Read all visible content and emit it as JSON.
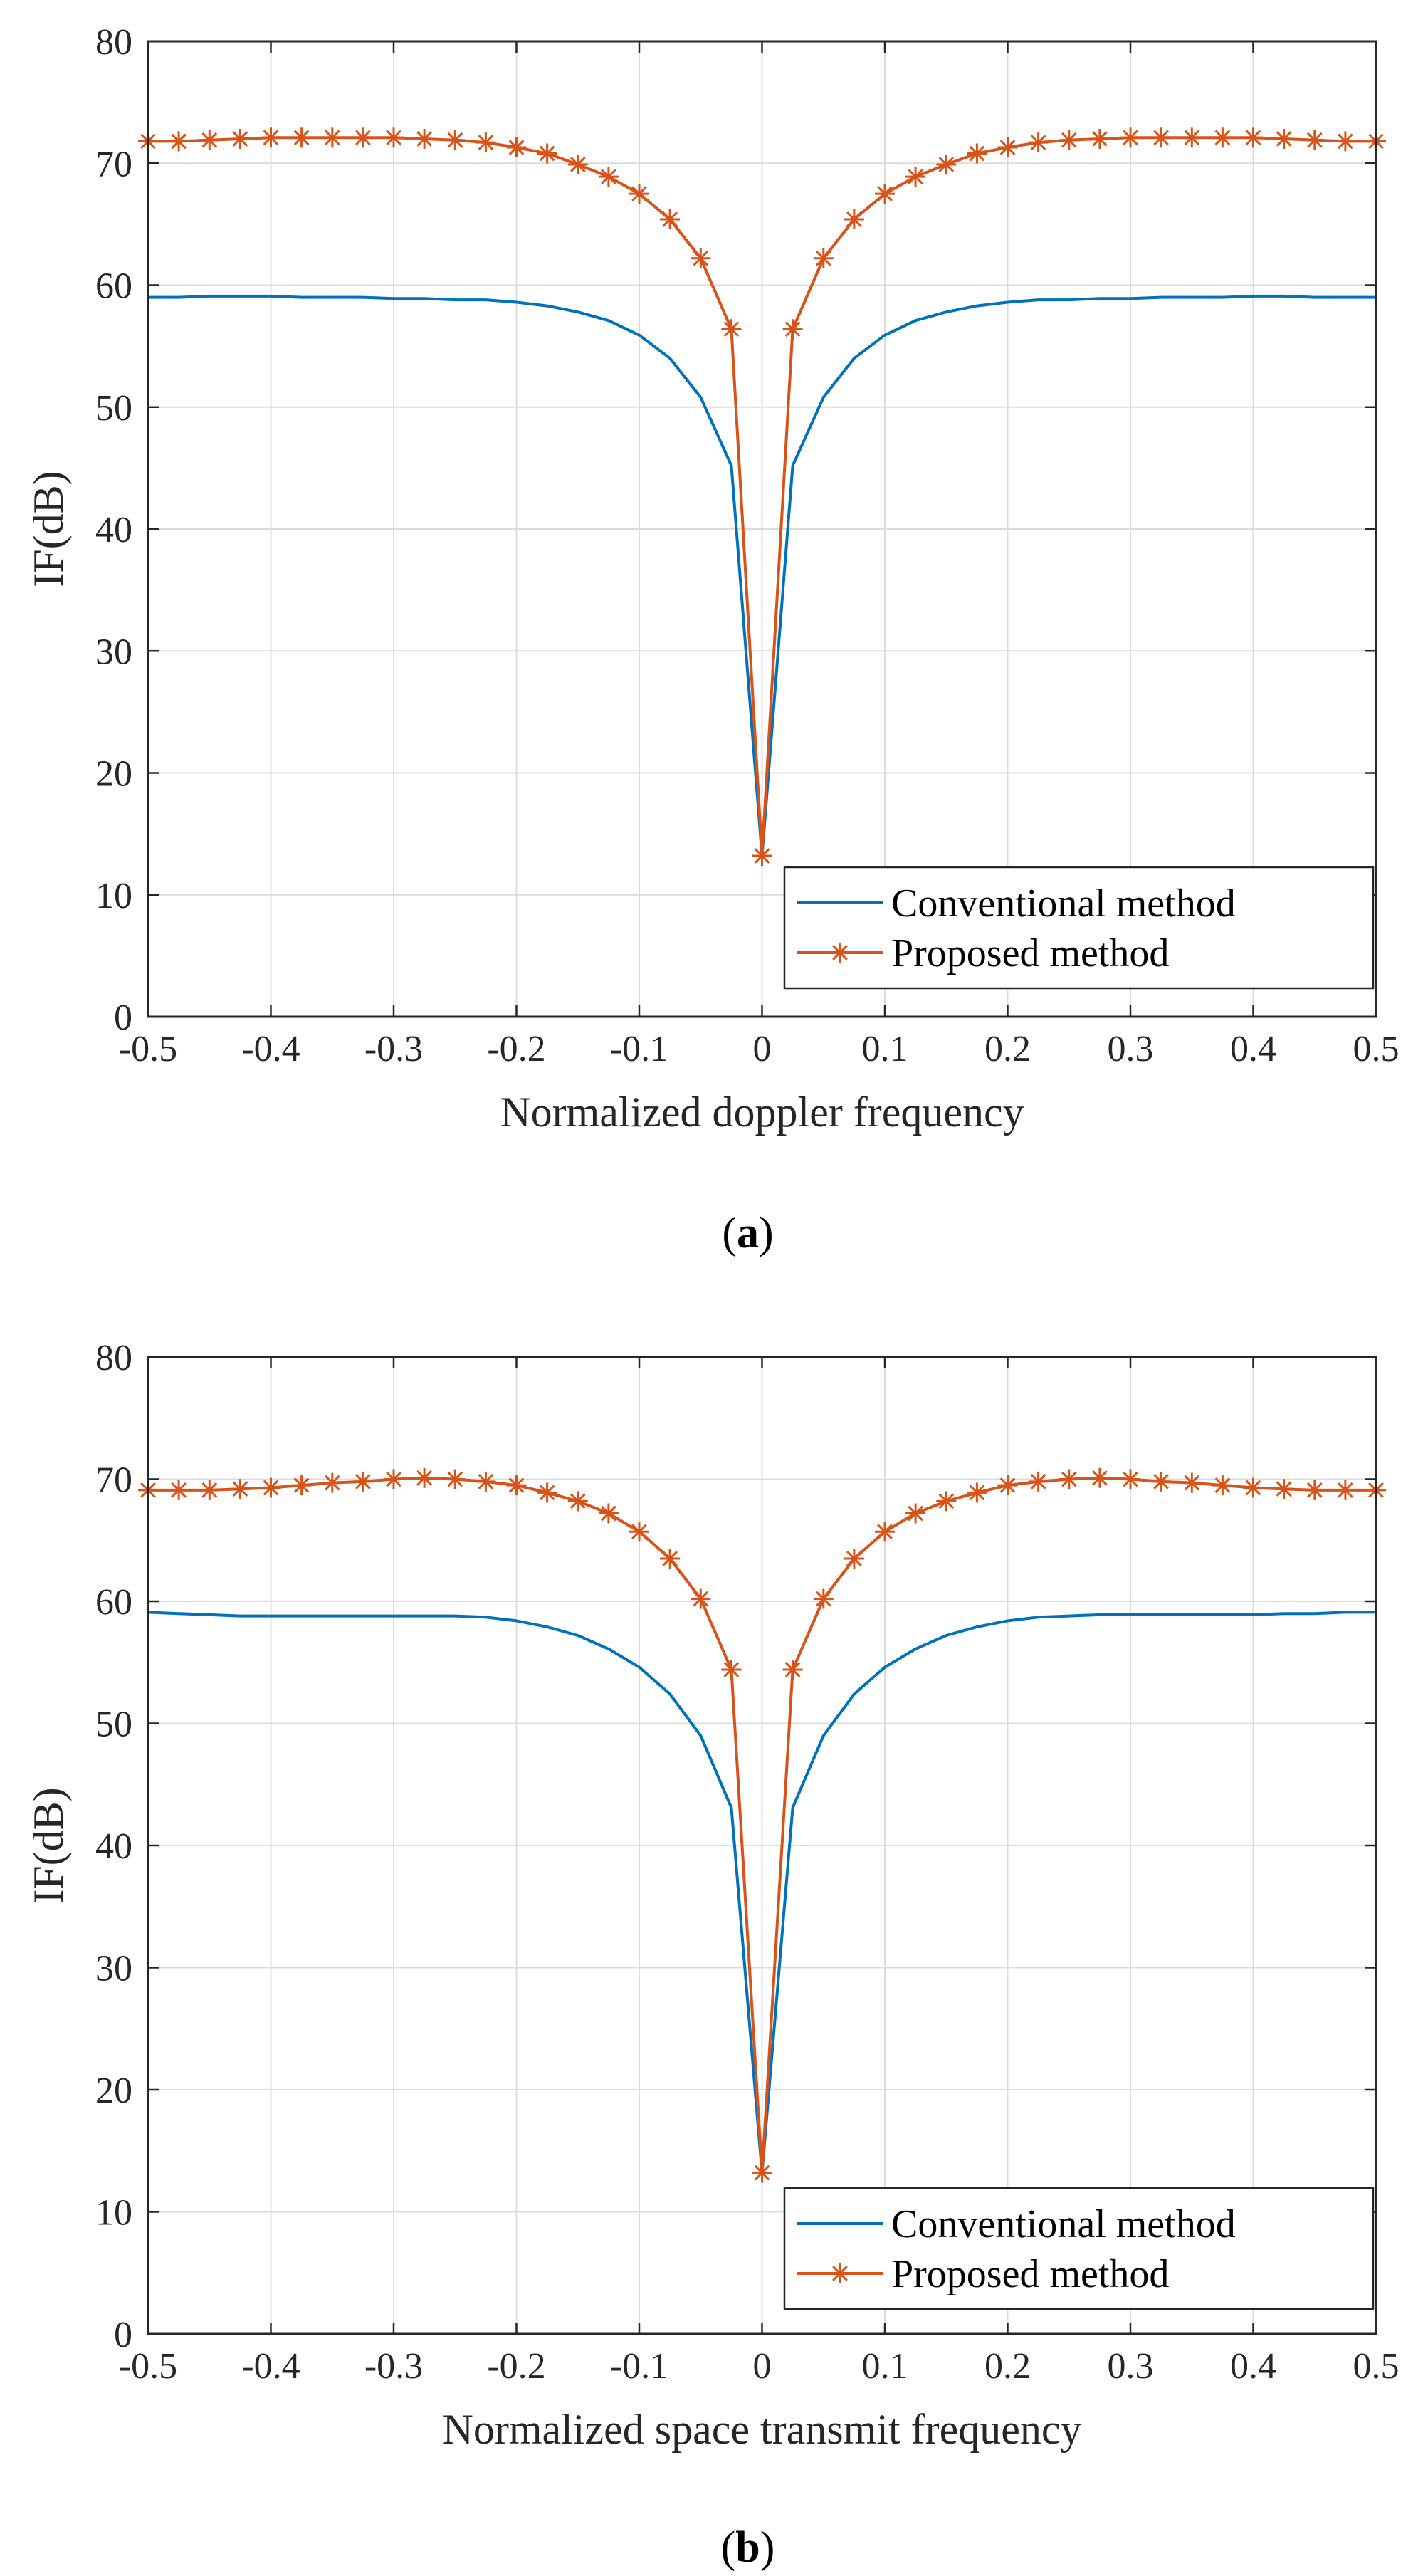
{
  "chart_data": [
    {
      "type": "line",
      "panel_label": "a",
      "title": "",
      "xlabel": "Normalized doppler frequency",
      "ylabel": "IF(dB)",
      "xlim": [
        -0.5,
        0.5
      ],
      "ylim": [
        0,
        80
      ],
      "xticks": [
        "-0.5",
        "-0.4",
        "-0.3",
        "-0.2",
        "-0.1",
        "0",
        "0.1",
        "0.2",
        "0.3",
        "0.4",
        "0.5"
      ],
      "yticks": [
        "0",
        "10",
        "20",
        "30",
        "40",
        "50",
        "60",
        "70",
        "80"
      ],
      "grid": true,
      "legend_position": "bottom-right",
      "x": [
        -0.5,
        -0.475,
        -0.45,
        -0.425,
        -0.4,
        -0.375,
        -0.35,
        -0.325,
        -0.3,
        -0.275,
        -0.25,
        -0.225,
        -0.2,
        -0.175,
        -0.15,
        -0.125,
        -0.1,
        -0.075,
        -0.05,
        -0.025,
        0,
        0.025,
        0.05,
        0.075,
        0.1,
        0.125,
        0.15,
        0.175,
        0.2,
        0.225,
        0.25,
        0.275,
        0.3,
        0.325,
        0.35,
        0.375,
        0.4,
        0.425,
        0.45,
        0.475,
        0.5
      ],
      "series": [
        {
          "name": "Conventional method",
          "color": "#0072BD",
          "marker": "none",
          "values": [
            59.0,
            59.0,
            59.1,
            59.1,
            59.1,
            59.0,
            59.0,
            59.0,
            58.9,
            58.9,
            58.8,
            58.8,
            58.6,
            58.3,
            57.8,
            57.1,
            55.9,
            54.0,
            50.8,
            45.2,
            13.2,
            45.2,
            50.8,
            54.0,
            55.9,
            57.1,
            57.8,
            58.3,
            58.6,
            58.8,
            58.8,
            58.9,
            58.9,
            59.0,
            59.0,
            59.0,
            59.1,
            59.1,
            59.0,
            59.0,
            59.0
          ]
        },
        {
          "name": "Proposed method",
          "color": "#D95319",
          "marker": "asterisk",
          "values": [
            71.8,
            71.8,
            71.9,
            72.0,
            72.1,
            72.1,
            72.1,
            72.1,
            72.1,
            72.0,
            71.9,
            71.7,
            71.3,
            70.8,
            69.9,
            68.9,
            67.5,
            65.4,
            62.2,
            56.4,
            13.2,
            56.4,
            62.2,
            65.4,
            67.5,
            68.9,
            69.9,
            70.8,
            71.3,
            71.7,
            71.9,
            72.0,
            72.1,
            72.1,
            72.1,
            72.1,
            72.1,
            72.0,
            71.9,
            71.8,
            71.8
          ]
        }
      ]
    },
    {
      "type": "line",
      "panel_label": "b",
      "title": "",
      "xlabel": "Normalized space transmit frequency",
      "ylabel": "IF(dB)",
      "xlim": [
        -0.5,
        0.5
      ],
      "ylim": [
        0,
        80
      ],
      "xticks": [
        "-0.5",
        "-0.4",
        "-0.3",
        "-0.2",
        "-0.1",
        "0",
        "0.1",
        "0.2",
        "0.3",
        "0.4",
        "0.5"
      ],
      "yticks": [
        "0",
        "10",
        "20",
        "30",
        "40",
        "50",
        "60",
        "70",
        "80"
      ],
      "grid": true,
      "legend_position": "bottom-right",
      "x": [
        -0.5,
        -0.475,
        -0.45,
        -0.425,
        -0.4,
        -0.375,
        -0.35,
        -0.325,
        -0.3,
        -0.275,
        -0.25,
        -0.225,
        -0.2,
        -0.175,
        -0.15,
        -0.125,
        -0.1,
        -0.075,
        -0.05,
        -0.025,
        0,
        0.025,
        0.05,
        0.075,
        0.1,
        0.125,
        0.15,
        0.175,
        0.2,
        0.225,
        0.25,
        0.275,
        0.3,
        0.325,
        0.35,
        0.375,
        0.4,
        0.425,
        0.45,
        0.475,
        0.5
      ],
      "series": [
        {
          "name": "Conventional method",
          "color": "#0072BD",
          "marker": "none",
          "values": [
            59.1,
            59.0,
            58.9,
            58.8,
            58.8,
            58.8,
            58.8,
            58.8,
            58.8,
            58.8,
            58.8,
            58.7,
            58.4,
            57.9,
            57.2,
            56.1,
            54.6,
            52.4,
            49.0,
            43.1,
            13.2,
            43.1,
            49.0,
            52.4,
            54.6,
            56.1,
            57.2,
            57.9,
            58.4,
            58.7,
            58.8,
            58.9,
            58.9,
            58.9,
            58.9,
            58.9,
            58.9,
            59.0,
            59.0,
            59.1,
            59.1
          ]
        },
        {
          "name": "Proposed method",
          "color": "#D95319",
          "marker": "asterisk",
          "values": [
            69.1,
            69.1,
            69.1,
            69.2,
            69.3,
            69.5,
            69.7,
            69.8,
            70.0,
            70.1,
            70.0,
            69.8,
            69.5,
            68.9,
            68.2,
            67.2,
            65.7,
            63.5,
            60.2,
            54.4,
            13.2,
            54.4,
            60.2,
            63.5,
            65.7,
            67.2,
            68.2,
            68.9,
            69.5,
            69.8,
            70.0,
            70.1,
            70.0,
            69.8,
            69.7,
            69.5,
            69.3,
            69.2,
            69.1,
            69.1,
            69.1
          ]
        }
      ]
    }
  ]
}
